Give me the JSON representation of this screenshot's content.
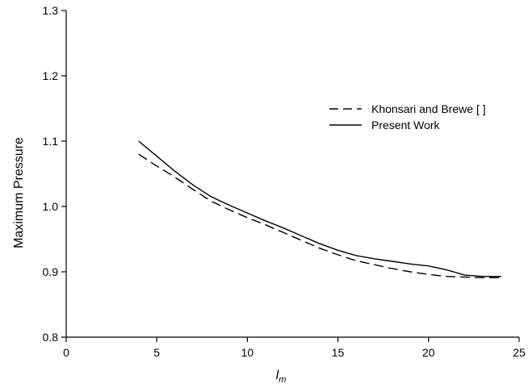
{
  "chart_data": {
    "type": "line",
    "title": "",
    "xlabel_main": "l",
    "xlabel_sub": "m",
    "ylabel": "Maximum Pressure",
    "xlim": [
      0,
      25
    ],
    "ylim": [
      0.8,
      1.3
    ],
    "xticks": [
      0,
      5,
      10,
      15,
      20,
      25
    ],
    "yticks": [
      0.8,
      0.9,
      1.0,
      1.1,
      1.2,
      1.3
    ],
    "ytick_labels": [
      "0.8",
      "0.9",
      "1.0",
      "1.1",
      "1.2",
      "1.3"
    ],
    "grid": false,
    "legend_position": "upper-right",
    "series": [
      {
        "name": "Khonsari and Brewe [ ]",
        "style": "dashed",
        "x": [
          4,
          5,
          6,
          7,
          8,
          9,
          10,
          11,
          12,
          13,
          14,
          15,
          16,
          17,
          18,
          19,
          20,
          21,
          22,
          23,
          24
        ],
        "y": [
          1.08,
          1.062,
          1.045,
          1.026,
          1.008,
          0.995,
          0.983,
          0.972,
          0.96,
          0.948,
          0.936,
          0.926,
          0.917,
          0.911,
          0.905,
          0.9,
          0.896,
          0.893,
          0.892,
          0.891,
          0.891
        ]
      },
      {
        "name": "Present Work",
        "style": "solid",
        "x": [
          4,
          5,
          6,
          7,
          8,
          9,
          10,
          11,
          12,
          13,
          14,
          15,
          16,
          17,
          18,
          19,
          20,
          21,
          22,
          23,
          24
        ],
        "y": [
          1.1,
          1.077,
          1.054,
          1.033,
          1.015,
          1.002,
          0.99,
          0.978,
          0.967,
          0.955,
          0.943,
          0.933,
          0.925,
          0.92,
          0.916,
          0.912,
          0.909,
          0.903,
          0.895,
          0.893,
          0.893
        ]
      }
    ]
  }
}
